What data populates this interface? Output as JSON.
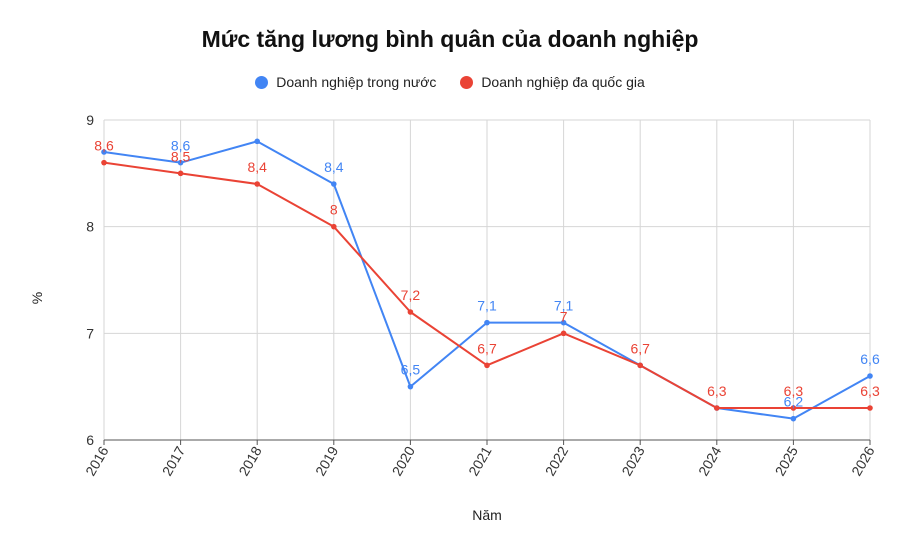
{
  "chart_data": {
    "type": "line",
    "title": "Mức tăng lương bình quân của doanh nghiệp",
    "xlabel": "Năm",
    "ylabel": "%",
    "categories": [
      "2016",
      "2017",
      "2018",
      "2019",
      "2020",
      "2021",
      "2022",
      "2023",
      "2024",
      "2025",
      "2026"
    ],
    "ylim": [
      6,
      9
    ],
    "yticks": [
      "6",
      "7",
      "8",
      "9"
    ],
    "grid": true,
    "legend_position": "top",
    "series": [
      {
        "name": "Doanh nghiệp trong nước",
        "color": "#4285F4",
        "values": [
          8.7,
          8.6,
          8.8,
          8.4,
          6.5,
          7.1,
          7.1,
          6.7,
          6.3,
          6.2,
          6.6
        ],
        "labels": [
          "",
          "8,6",
          "",
          "8,4",
          "6,5",
          "7,1",
          "7,1",
          "",
          "",
          "6,2",
          "6,6"
        ]
      },
      {
        "name": "Doanh nghiệp đa quốc gia",
        "color": "#EA4335",
        "values": [
          8.6,
          8.5,
          8.4,
          8.0,
          7.2,
          6.7,
          7.0,
          6.7,
          6.3,
          6.3,
          6.3
        ],
        "labels": [
          "8,6",
          "8,5",
          "8,4",
          "8",
          "7,2",
          "6,7",
          "7",
          "6,7",
          "6,3",
          "6,3",
          "6,3"
        ]
      }
    ]
  }
}
